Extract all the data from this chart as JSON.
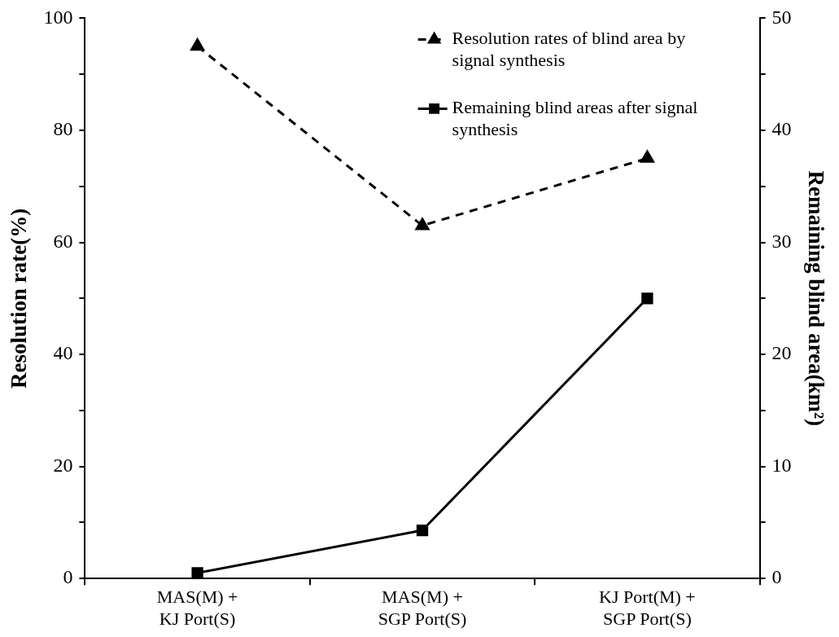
{
  "chart_data": {
    "type": "line",
    "categories": [
      "MAS(M) +\nKJ Port(S)",
      "MAS(M) +\nSGP Port(S)",
      "KJ Port(M) +\nSGP Port(S)"
    ],
    "ylabel": "Resolution rate(%)",
    "y2label": "Remaining blind area(km²)",
    "series": [
      {
        "name": "Resolution rates of blind area by signal synthesis",
        "color": "#000000",
        "values": [
          95,
          63,
          75
        ],
        "marker": "triangle",
        "line_style": "dashed"
      },
      {
        "name": "Remaining blind areas after signal synthesis",
        "color": "#000000",
        "values": [
          0.5,
          4.3,
          25
        ],
        "marker": "square",
        "line_style": "solid",
        "axis": "y2"
      }
    ],
    "ylim": [
      0,
      100
    ],
    "yticks": [
      0,
      {
        "value": 10,
        "label": null
      },
      20,
      {
        "value": 30,
        "label": null
      },
      40,
      {
        "value": 50,
        "label": null
      },
      60,
      {
        "value": 70,
        "label": null
      },
      80,
      {
        "value": 90,
        "label": null
      },
      100
    ],
    "y2lim": [
      0,
      50
    ],
    "y2ticks": [
      0,
      {
        "value": 5,
        "label": null
      },
      10,
      {
        "value": 15,
        "label": null
      },
      20,
      {
        "value": 25,
        "label": null
      },
      30,
      {
        "value": 35,
        "label": null
      },
      40,
      {
        "value": 45,
        "label": null
      },
      50
    ],
    "grid": false,
    "legend": "top right"
  }
}
